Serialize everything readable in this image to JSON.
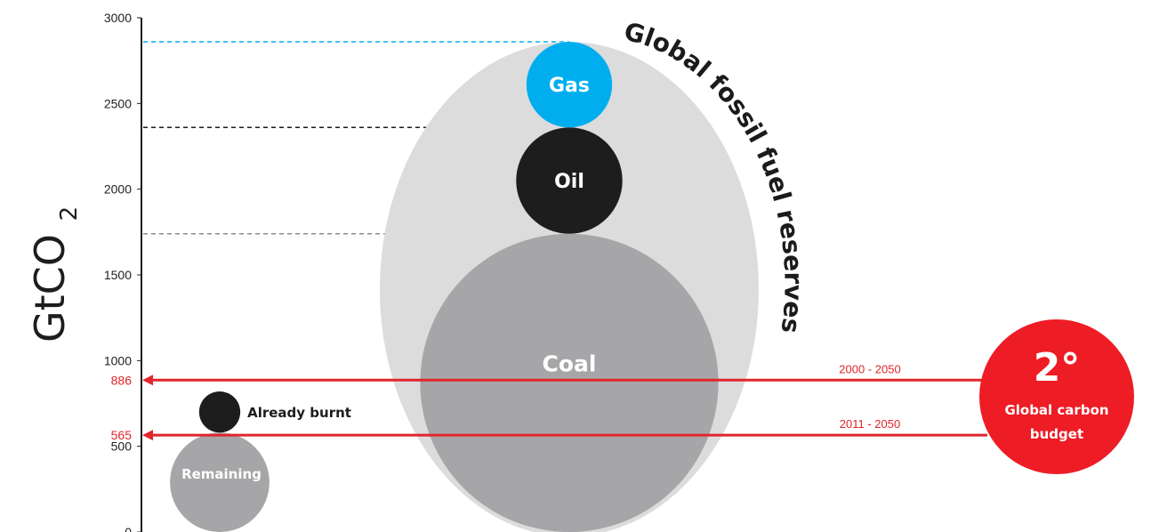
{
  "chart_data": {
    "type": "bubble",
    "title": "",
    "ylabel": "GtCO",
    "ylabel_subscript": "2",
    "ylim": [
      0,
      3000
    ],
    "yticks": [
      0,
      500,
      1000,
      1500,
      2000,
      2500,
      3000
    ],
    "ytick_labels": [
      "0",
      "500",
      "1000",
      "1500",
      "2000",
      "2500",
      "3000"
    ],
    "highlight_ticks": [
      {
        "value": 886,
        "label": "886"
      },
      {
        "value": 565,
        "label": "565"
      }
    ],
    "reserves_group": {
      "label": "Global fossil fuel reserves",
      "color": "#dcdcdd"
    },
    "reserves": [
      {
        "name": "Coal",
        "bottom": 0,
        "top": 1740,
        "color": "#a6a6a8"
      },
      {
        "name": "Oil",
        "bottom": 1740,
        "top": 2360,
        "color": "#1d1d1d"
      },
      {
        "name": "Gas",
        "bottom": 2360,
        "top": 2860,
        "color": "#00aeef"
      }
    ],
    "budget_bubbles": [
      {
        "name": "Remaining",
        "bottom": 0,
        "top": 580,
        "color": "#a6a6a8",
        "label_inside": true
      },
      {
        "name": "Already burnt",
        "bottom": 580,
        "top": 820,
        "color": "#1d1d1d",
        "label_inside": false
      }
    ],
    "budget_lines": [
      {
        "label": "2000 - 2050",
        "value": 886,
        "color": "#e0262b"
      },
      {
        "label": "2011 - 2050",
        "value": 565,
        "color": "#e0262b"
      }
    ],
    "budget_badge": {
      "title": "2°",
      "subtitle_line1": "Global carbon",
      "subtitle_line2": "budget",
      "color": "#ee1c25"
    },
    "guide_lines": [
      {
        "value": 2860,
        "color": "#00aeef"
      },
      {
        "value": 2360,
        "color": "#1d1d1d"
      },
      {
        "value": 1740,
        "color": "#8c8c8c"
      }
    ]
  }
}
